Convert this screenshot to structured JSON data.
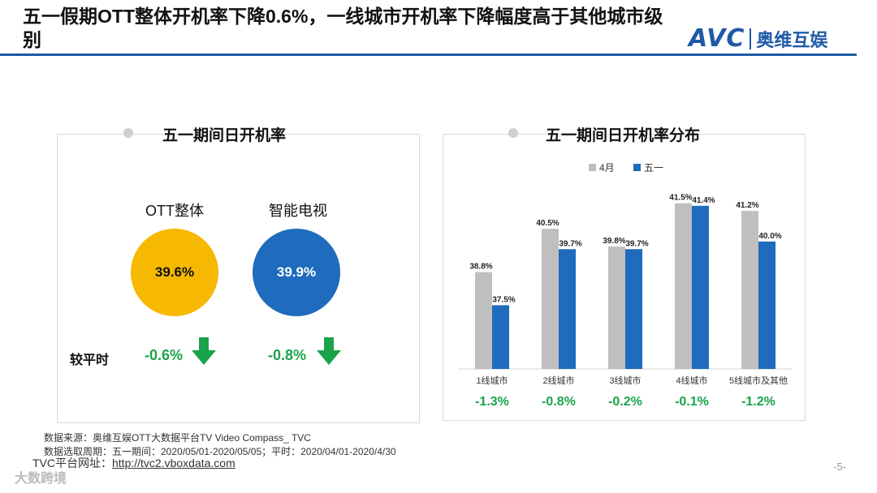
{
  "header": {
    "title": "五一假期OTT整体开机率下降0.6%，一线城市开机率下降幅度高于其他城市级别",
    "logo_en": "AVC",
    "logo_cn": "奥维互娱"
  },
  "left_panel": {
    "title": "五一期间日开机率",
    "items": [
      {
        "label": "OTT整体",
        "value": "39.6%",
        "delta": "-0.6%",
        "color": "#f6b800"
      },
      {
        "label": "智能电视",
        "value": "39.9%",
        "delta": "-0.8%",
        "color": "#1f6bbd"
      }
    ],
    "compare_label": "较平时"
  },
  "chart_data": {
    "type": "bar",
    "title": "五一期间日开机率分布",
    "categories": [
      "1线城市",
      "2线城市",
      "3线城市",
      "4线城市",
      "5线城市及其他"
    ],
    "series": [
      {
        "name": "4月",
        "color": "#bfbfbf",
        "values": [
          38.8,
          40.5,
          39.8,
          41.5,
          41.2
        ],
        "labels": [
          "38.8%",
          "40.5%",
          "39.8%",
          "41.5%",
          "41.2%"
        ]
      },
      {
        "name": "五一",
        "color": "#1f6bbd",
        "values": [
          37.5,
          39.7,
          39.7,
          41.4,
          40.0
        ],
        "labels": [
          "37.5%",
          "39.7%",
          "39.7%",
          "41.4%",
          "40.0%"
        ]
      }
    ],
    "deltas": [
      "-1.3%",
      "-0.8%",
      "-0.2%",
      "-0.1%",
      "-1.2%"
    ],
    "ylim": [
      35,
      42
    ],
    "legend_position": "top"
  },
  "footer": {
    "source": "数据来源：奥维互娱OTT大数据平台TV Video Compass_ TVC",
    "period": "数据选取周期：五一期间：2020/05/01-2020/05/05；平时：2020/04/01-2020/4/30",
    "url_label": "TVC平台网址：",
    "url": "http://tvc2.vboxdata.com",
    "page": "-5-",
    "corner_mark": "大数跨境"
  },
  "colors": {
    "accent": "#1f5aa6",
    "positive_down": "#1aa34a"
  }
}
